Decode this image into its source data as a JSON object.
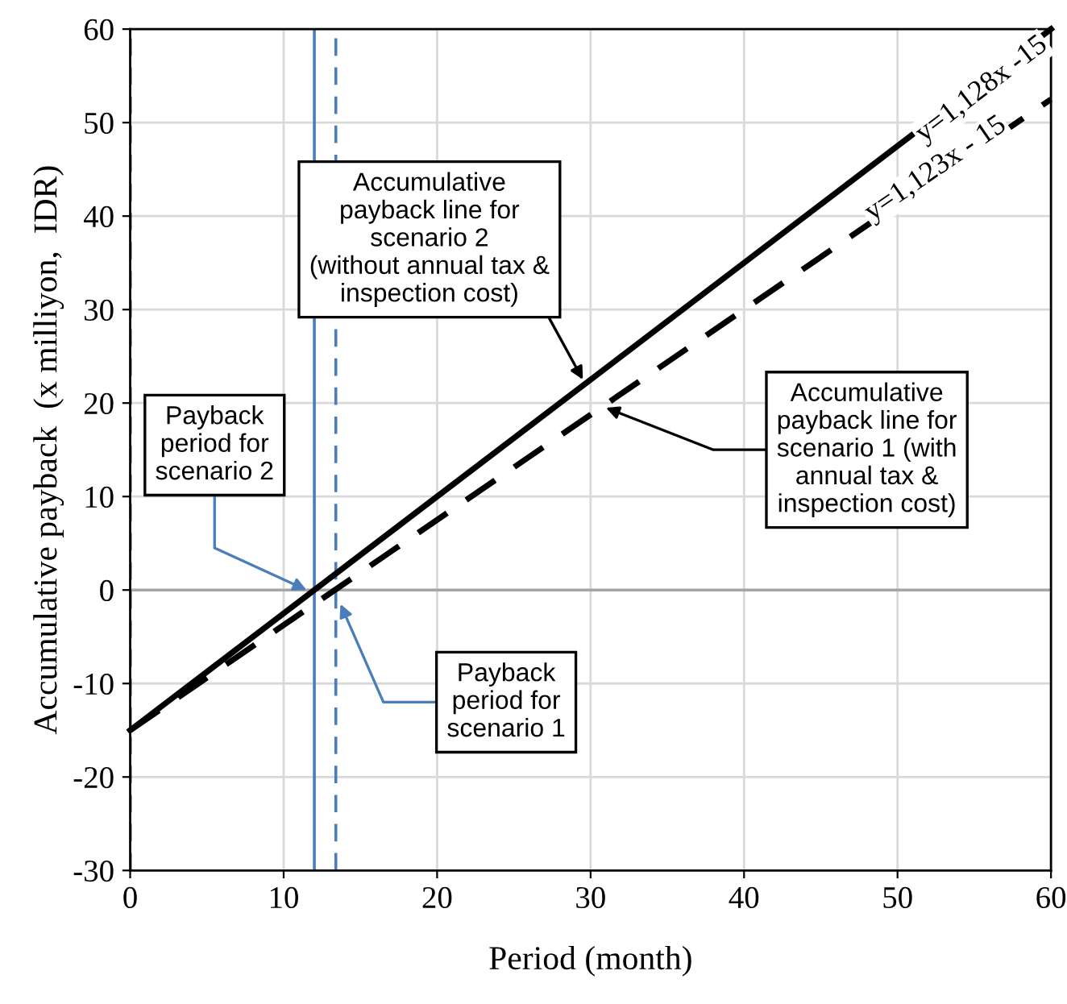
{
  "chart_data": {
    "type": "line",
    "xlabel": "Period (month)",
    "ylabel": "Accumulative payback  (x milliyon,  IDR)",
    "series": [
      {
        "values": [
          -15,
          60
        ],
        "color": "#000000",
        "line_style": "solid"
      },
      {
        "values": [
          -15,
          52.5
        ],
        "color": "#000000",
        "line_style": "dashed"
      }
    ],
    "x": [
      0,
      60
    ],
    "xlim": [
      0,
      60
    ],
    "xticks": [
      0,
      10,
      20,
      30,
      40,
      50,
      60
    ],
    "ylim": [
      -30,
      60
    ],
    "yticks": [
      -30,
      -20,
      -10,
      0,
      10,
      20,
      30,
      40,
      50,
      60
    ],
    "grid": true,
    "marker": "none",
    "ref_lines": [
      {
        "axis": "y",
        "value": 0,
        "color": "#a6a6a6",
        "line_style": "solid"
      },
      {
        "axis": "x",
        "value": 0,
        "color": "#000000",
        "line_style": "dashed"
      },
      {
        "axis": "x",
        "value": 12,
        "color": "#4a7ebb",
        "line_style": "solid"
      },
      {
        "axis": "x",
        "value": 13.4,
        "color": "#4a7ebb",
        "line_style": "dashed"
      }
    ],
    "annotations": [
      {
        "text": "Accumulative\npayback line for\nscenario 2\n(without annual tax &\ninspection cost)",
        "x": 29.5,
        "y": 22.5
      },
      {
        "text": "Accumulative\npayback line for\nscenario 1 (with\nannual tax &\ninspection cost)",
        "x": 31,
        "y": 19.5
      },
      {
        "text": "Payback\nperiod for\nscenario 2",
        "x": 11.5,
        "y": 0
      },
      {
        "text": "Payback\nperiod for\nscenario 1",
        "x": 13.7,
        "y": -1.5
      },
      "y=1,128x -15",
      "y=1,123x - 15"
    ]
  }
}
